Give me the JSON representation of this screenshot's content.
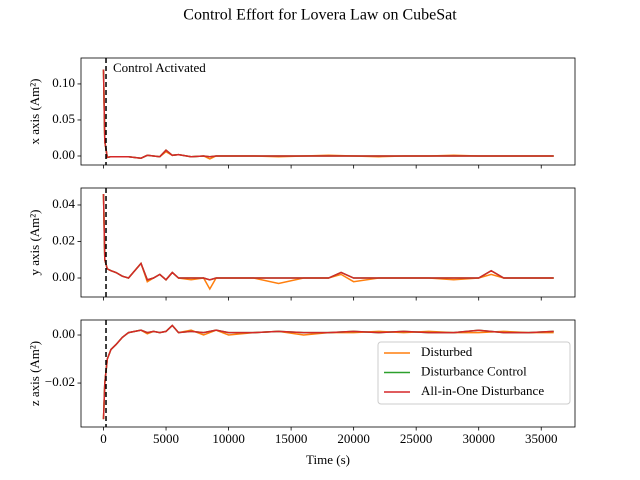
{
  "chart_data": [
    {
      "type": "line",
      "title": "Control Effort for Lovera Law on CubeSat",
      "ylabel": "x axis (Am²)",
      "annotation": "Control Activated",
      "vline": 200,
      "xlim": [
        -1800,
        37700
      ],
      "ylim": [
        -0.0125,
        0.136
      ],
      "yticks": [
        {
          "value": 0,
          "label": "0.00"
        },
        {
          "value": 0.05,
          "label": "0.05"
        },
        {
          "value": 0.1,
          "label": "0.10"
        }
      ],
      "x": [
        0,
        100,
        300,
        600,
        1000,
        1500,
        2000,
        3000,
        3500,
        4000,
        4500,
        5000,
        5500,
        6000,
        7000,
        8000,
        8500,
        9000,
        10000,
        12000,
        14000,
        16000,
        18000,
        20000,
        22000,
        24000,
        26000,
        28000,
        30000,
        31000,
        32000,
        34000,
        36000
      ],
      "series": [
        {
          "color": "#ff7f0e",
          "values": [
            0.12,
            0.02,
            -0.002,
            -0.001,
            -0.001,
            -0.001,
            -0.001,
            -0.003,
            0.001,
            0,
            -0.001,
            0.006,
            0.001,
            0.002,
            -0.001,
            0,
            -0.004,
            0,
            0,
            0,
            -0.001,
            0,
            0.001,
            0,
            -0.001,
            0,
            0,
            0.001,
            0,
            0,
            0,
            0,
            0
          ]
        },
        {
          "color": "#2ca02c",
          "values": [
            0.12,
            0.02,
            -0.002,
            -0.001,
            -0.001,
            -0.001,
            -0.001,
            -0.003,
            0.001,
            0,
            -0.001,
            0.008,
            0.001,
            0.002,
            -0.001,
            0,
            -0.001,
            0,
            0,
            0,
            0,
            0,
            0,
            0,
            0,
            0,
            0,
            0,
            0,
            0,
            0,
            0,
            0
          ]
        },
        {
          "color": "#d62728",
          "values": [
            0.12,
            0.02,
            -0.002,
            -0.001,
            -0.001,
            -0.001,
            -0.001,
            -0.003,
            0.001,
            0,
            -0.001,
            0.008,
            0.001,
            0.002,
            -0.001,
            0,
            -0.001,
            0,
            0,
            0,
            0,
            0,
            0,
            0,
            0,
            0,
            0,
            0,
            0,
            0,
            0,
            0,
            0
          ]
        }
      ]
    },
    {
      "type": "line",
      "ylabel": "y axis (Am²)",
      "vline": 200,
      "xlim": [
        -1800,
        37700
      ],
      "ylim": [
        -0.0104,
        0.0493
      ],
      "yticks": [
        {
          "value": 0,
          "label": "0.00"
        },
        {
          "value": 0.02,
          "label": "0.02"
        },
        {
          "value": 0.04,
          "label": "0.04"
        }
      ],
      "x": [
        0,
        100,
        300,
        600,
        1000,
        1500,
        2000,
        3000,
        3500,
        4000,
        4500,
        5000,
        5500,
        6000,
        7000,
        8000,
        8500,
        9000,
        10000,
        12000,
        14000,
        16000,
        18000,
        19000,
        20000,
        22000,
        24000,
        26000,
        28000,
        30000,
        31000,
        32000,
        36000
      ],
      "series": [
        {
          "color": "#ff7f0e",
          "values": [
            0.046,
            0.01,
            0.005,
            0.004,
            0.003,
            0.001,
            0,
            0.008,
            -0.002,
            0,
            0.002,
            -0.001,
            0.003,
            0,
            -0.001,
            0,
            -0.006,
            0,
            0,
            0,
            -0.003,
            0,
            0,
            0.002,
            -0.002,
            0,
            0,
            0,
            -0.001,
            0,
            0.002,
            0,
            0
          ]
        },
        {
          "color": "#2ca02c",
          "values": [
            0.046,
            0.01,
            0.005,
            0.004,
            0.003,
            0.001,
            0,
            0.008,
            -0.001,
            0,
            0.002,
            -0.001,
            0.003,
            0,
            0,
            0,
            -0.001,
            0,
            0,
            0,
            0,
            0,
            0,
            0.003,
            0,
            0,
            0,
            0,
            0,
            0,
            0.004,
            0,
            0
          ]
        },
        {
          "color": "#d62728",
          "values": [
            0.046,
            0.01,
            0.005,
            0.004,
            0.003,
            0.001,
            0,
            0.008,
            -0.001,
            0,
            0.002,
            -0.001,
            0.003,
            0,
            0,
            0,
            -0.001,
            0,
            0,
            0,
            0,
            0,
            0,
            0.003,
            0,
            0,
            0,
            0,
            0,
            0,
            0.004,
            0,
            0
          ]
        }
      ]
    },
    {
      "type": "line",
      "ylabel": "z axis (Am²)",
      "xlabel": "Time (s)",
      "vline": 200,
      "legend": "lower right",
      "xlim": [
        -1800,
        37700
      ],
      "ylim": [
        -0.0383,
        0.00625
      ],
      "xticks": [
        0,
        5000,
        10000,
        15000,
        20000,
        25000,
        30000,
        35000
      ],
      "yticks": [
        {
          "value": -0.02,
          "label": "−0.02"
        },
        {
          "value": 0,
          "label": "0.00"
        }
      ],
      "x": [
        0,
        100,
        300,
        600,
        1000,
        1500,
        2000,
        3000,
        3500,
        4000,
        4500,
        5000,
        5500,
        6000,
        7000,
        8000,
        9000,
        10000,
        12000,
        14000,
        16000,
        18000,
        20000,
        22000,
        24000,
        26000,
        28000,
        30000,
        32000,
        34000,
        36000
      ],
      "series": [
        {
          "name": "Disturbed",
          "color": "#ff7f0e",
          "values": [
            -0.035,
            -0.02,
            -0.01,
            -0.006,
            -0.004,
            -0.001,
            0.001,
            0.002,
            0.0005,
            0.0015,
            0.001,
            0.0015,
            0.004,
            0.001,
            0.002,
            0,
            0.002,
            0,
            0.001,
            0.0015,
            0,
            0.001,
            0.001,
            0.0015,
            0.001,
            0.0015,
            0.001,
            0.001,
            0.0015,
            0.001,
            0.001
          ]
        },
        {
          "name": "Disturbance Control",
          "color": "#2ca02c",
          "values": [
            -0.035,
            -0.02,
            -0.01,
            -0.006,
            -0.004,
            -0.001,
            0.001,
            0.002,
            0.001,
            0.0015,
            0.001,
            0.0015,
            0.004,
            0.001,
            0.0015,
            0.001,
            0.002,
            0.001,
            0.001,
            0.0015,
            0.001,
            0.001,
            0.0015,
            0.001,
            0.0015,
            0.001,
            0.001,
            0.002,
            0.001,
            0.001,
            0.0015
          ]
        },
        {
          "name": "All-in-One Disturbance",
          "color": "#d62728",
          "values": [
            -0.035,
            -0.02,
            -0.01,
            -0.006,
            -0.004,
            -0.001,
            0.001,
            0.002,
            0.001,
            0.0015,
            0.001,
            0.0015,
            0.004,
            0.001,
            0.0015,
            0.001,
            0.002,
            0.001,
            0.001,
            0.0015,
            0.001,
            0.001,
            0.0015,
            0.001,
            0.0015,
            0.001,
            0.001,
            0.002,
            0.001,
            0.001,
            0.0015
          ]
        }
      ]
    }
  ]
}
